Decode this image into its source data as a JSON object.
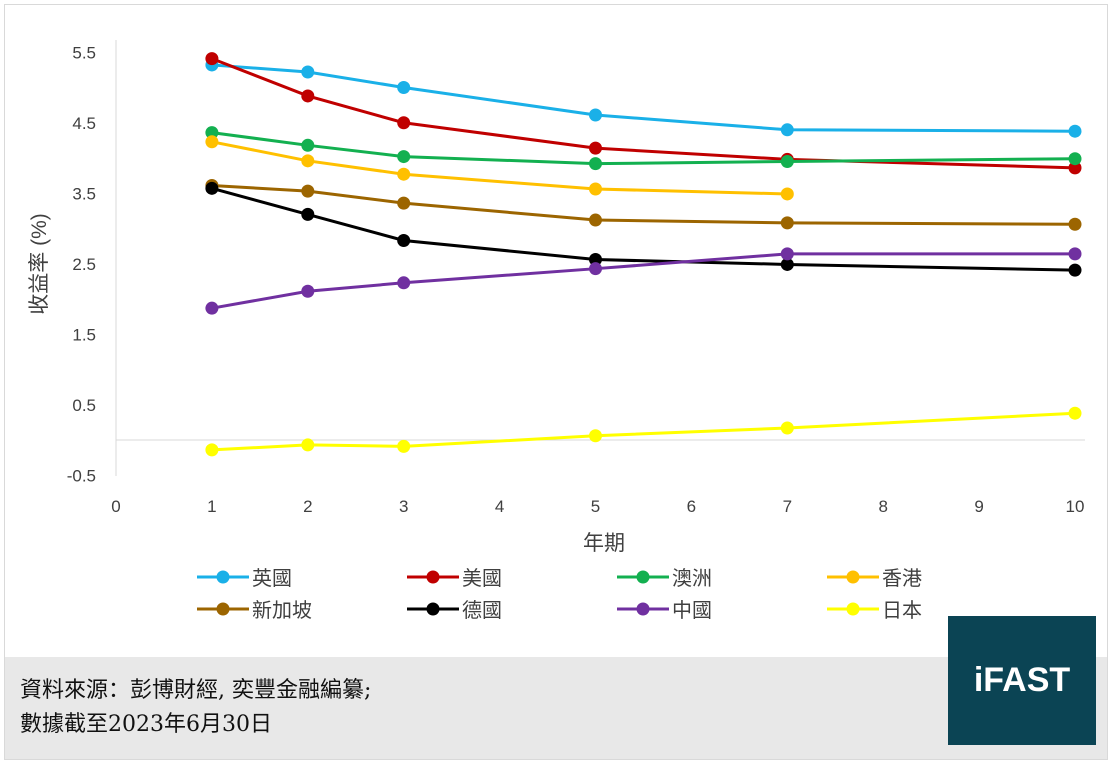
{
  "chart_data": {
    "type": "line",
    "xlabel": "年期",
    "ylabel": "收益率 (%)",
    "xlim": [
      0,
      10
    ],
    "ylim": [
      -0.5,
      5.5
    ],
    "xticks": [
      0,
      1,
      2,
      3,
      4,
      5,
      6,
      7,
      8,
      9,
      10
    ],
    "yticks": [
      5.5,
      4.5,
      3.5,
      2.5,
      1.5,
      0.5,
      -0.5
    ],
    "grid": false,
    "legend_placement": "bottom",
    "series": [
      {
        "name": "英國",
        "color": "#1ab0e8",
        "x": [
          1,
          2,
          3,
          5,
          7,
          10
        ],
        "values": [
          5.32,
          5.22,
          5.0,
          4.61,
          4.4,
          4.38
        ]
      },
      {
        "name": "美國",
        "color": "#c00000",
        "x": [
          1,
          2,
          3,
          5,
          7,
          10
        ],
        "values": [
          5.41,
          4.88,
          4.5,
          4.14,
          3.98,
          3.86
        ]
      },
      {
        "name": "澳洲",
        "color": "#13b050",
        "x": [
          1,
          2,
          3,
          5,
          7,
          10
        ],
        "values": [
          4.36,
          4.18,
          4.02,
          3.92,
          3.95,
          3.99
        ]
      },
      {
        "name": "香港",
        "color": "#ffc000",
        "x": [
          1,
          2,
          3,
          5,
          7
        ],
        "values": [
          4.23,
          3.96,
          3.77,
          3.56,
          3.49
        ]
      },
      {
        "name": "新加坡",
        "color": "#9c6500",
        "x": [
          1,
          2,
          3,
          5,
          7,
          10
        ],
        "values": [
          3.61,
          3.53,
          3.36,
          3.12,
          3.08,
          3.06
        ]
      },
      {
        "name": "德國",
        "color": "#000000",
        "x": [
          1,
          2,
          3,
          5,
          7,
          10
        ],
        "values": [
          3.57,
          3.2,
          2.83,
          2.56,
          2.49,
          2.41
        ]
      },
      {
        "name": "中國",
        "color": "#7030a0",
        "x": [
          1,
          2,
          3,
          5,
          7,
          10
        ],
        "values": [
          1.87,
          2.11,
          2.23,
          2.43,
          2.64,
          2.64
        ]
      },
      {
        "name": "日本",
        "color": "#ffff00",
        "x": [
          1,
          2,
          3,
          5,
          7,
          10
        ],
        "values": [
          -0.14,
          -0.07,
          -0.09,
          0.06,
          0.17,
          0.38
        ]
      }
    ]
  },
  "source": {
    "line1": "資料來源：彭博財經, 奕豐金融編纂;",
    "line2": "數據截至2023年6月30日"
  },
  "logo": "iFAST"
}
